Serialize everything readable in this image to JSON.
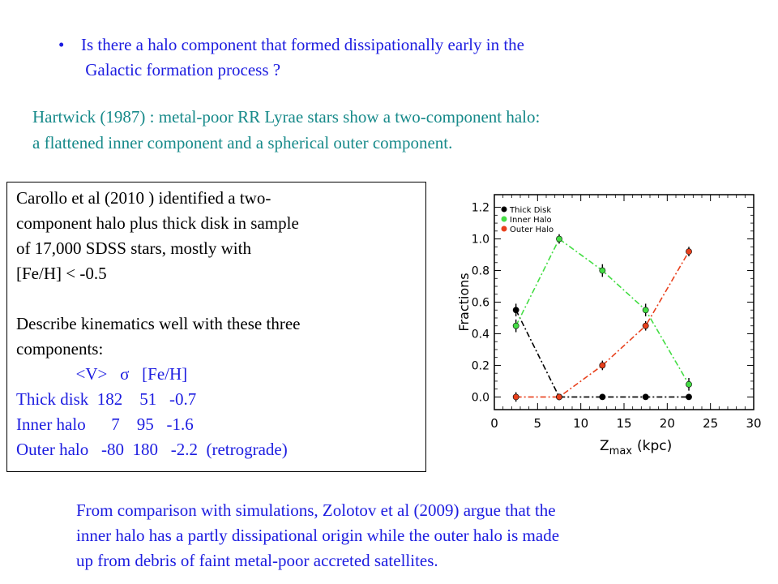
{
  "bullet": {
    "marker": "•",
    "text": "Is there a halo component that formed dissipationally early in the\n Galactic formation process ?"
  },
  "hartwick": {
    "line1": "Hartwick (1987) : metal-poor RR Lyrae stars show a two-component  halo:",
    "line2": "a flattened inner component and a spherical outer component."
  },
  "carollo_box": {
    "lines": [
      "Carollo et al (2010 ) identified a two-",
      "component halo plus thick disk in sample",
      "of 17,000 SDSS stars, mostly with",
      "[Fe/H] < -0.5",
      "",
      "Describe kinematics well with these three",
      "components:"
    ],
    "table_header": "              <V>   σ   [Fe/H]",
    "rows": [
      "Thick disk  182    51   -0.7",
      "Inner halo      7    95   -1.6",
      "Outer halo   -80  180   -2.2  (retrograde)"
    ]
  },
  "conclusion": {
    "line1": "From comparison with simulations, Zolotov et al (2009) argue that the",
    "line2": "inner halo has a partly dissipational origin while the outer halo is made",
    "line3": "up from debris of faint metal-poor accreted satellites."
  },
  "chart_data": {
    "type": "line",
    "xlabel": "Z",
    "xlabel_sub": "max",
    "xlabel_unit": "(kpc)",
    "ylabel": "Fractions",
    "xlim": [
      0,
      30
    ],
    "ylim": [
      -0.08,
      1.28
    ],
    "x_ticks": [
      0,
      5,
      10,
      15,
      20,
      25,
      30
    ],
    "y_ticks": [
      0.0,
      0.2,
      0.4,
      0.6,
      0.8,
      1.0,
      1.2
    ],
    "x_tick_labels": [
      "0",
      "5",
      "10",
      "15",
      "20",
      "25",
      "30"
    ],
    "y_tick_labels": [
      "0.0",
      "0.2",
      "0.4",
      "0.6",
      "0.8",
      "1.0",
      "1.2"
    ],
    "legend_position": "top-left",
    "series": [
      {
        "name": "Thick Disk",
        "color": "#000000",
        "x": [
          2.5,
          7.5,
          12.5,
          17.5,
          22.5
        ],
        "y": [
          0.55,
          0.0,
          0.0,
          0.0,
          0.0
        ],
        "err": [
          0.04,
          0.0,
          0.0,
          0.0,
          0.0
        ]
      },
      {
        "name": "Inner Halo",
        "color": "#44dd44",
        "x": [
          2.5,
          7.5,
          12.5,
          17.5,
          22.5
        ],
        "y": [
          0.45,
          1.0,
          0.8,
          0.55,
          0.08
        ],
        "err": [
          0.04,
          0.03,
          0.04,
          0.04,
          0.04
        ]
      },
      {
        "name": "Outer Halo",
        "color": "#e8401c",
        "x": [
          2.5,
          7.5,
          12.5,
          17.5,
          22.5
        ],
        "y": [
          0.0,
          0.0,
          0.2,
          0.45,
          0.92
        ],
        "err": [
          0.03,
          0.02,
          0.03,
          0.03,
          0.03
        ]
      }
    ]
  }
}
